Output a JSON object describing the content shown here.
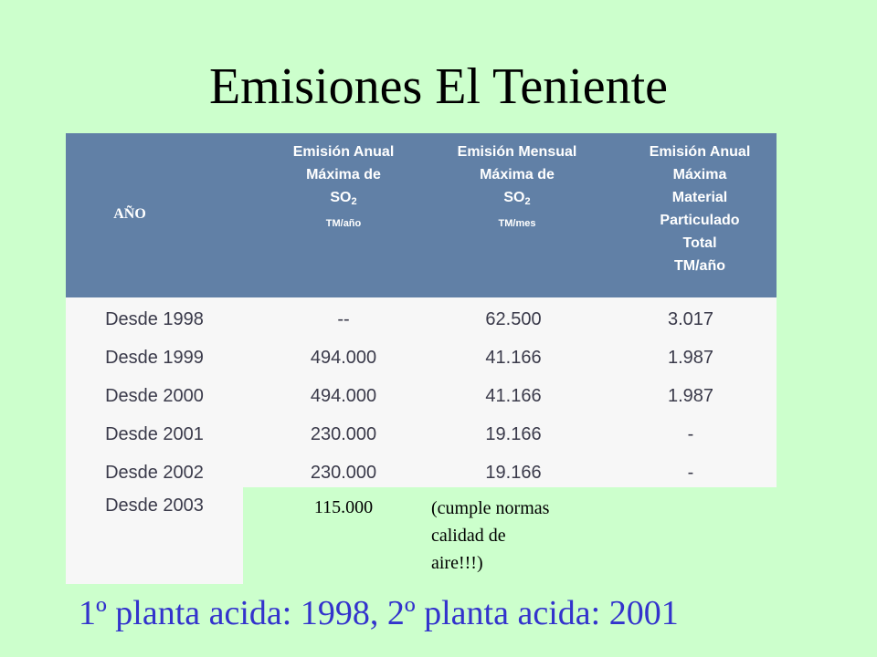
{
  "slide": {
    "title": "Emisiones El Teniente",
    "footer": "1º planta acida: 1998, 2º planta acida: 2001"
  },
  "table": {
    "headers": {
      "year": "AÑO",
      "col1": {
        "line1": "Emisión Anual",
        "line2": "Máxima de",
        "so_prefix": "SO",
        "so_sub": "2",
        "unit": "TM/año"
      },
      "col2": {
        "line1": "Emisión Mensual",
        "line2": "Máxima de",
        "so_prefix": "SO",
        "so_sub": "2",
        "unit": "TM/mes"
      },
      "col3": {
        "line1": "Emisión Anual",
        "line2": "Máxima",
        "line3": "Material",
        "line4": "Particulado",
        "line5": "Total",
        "line6": "TM/año"
      }
    },
    "rows": [
      {
        "year": "Desde 1998",
        "annual_so2": "--",
        "monthly_so2": "62.500",
        "particulate": "3.017"
      },
      {
        "year": "Desde 1999",
        "annual_so2": "494.000",
        "monthly_so2": "41.166",
        "particulate": "1.987"
      },
      {
        "year": "Desde 2000",
        "annual_so2": "494.000",
        "monthly_so2": "41.166",
        "particulate": "1.987"
      },
      {
        "year": "Desde 2001",
        "annual_so2": "230.000",
        "monthly_so2": "19.166",
        "particulate": "-"
      },
      {
        "year": "Desde 2002",
        "annual_so2": "230.000",
        "monthly_so2": "19.166",
        "particulate": "-"
      }
    ],
    "last_row": {
      "year": "Desde 2003",
      "annual_so2": "115.000",
      "note": "(cumple normas\ncalidad de\naire!!!)"
    }
  },
  "colors": {
    "background": "#ccffcc",
    "header_band": "#6180a6",
    "body_band": "#f7f7f7",
    "footer_text": "#3333cc"
  }
}
